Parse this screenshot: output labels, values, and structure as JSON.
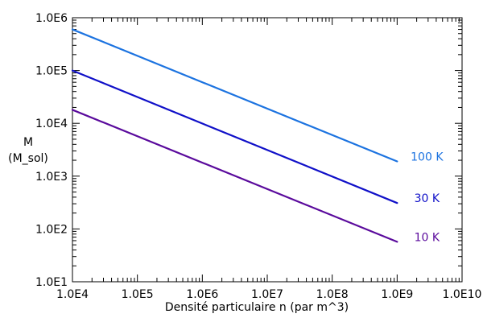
{
  "chart_data": {
    "type": "line",
    "xlabel": "Densité particulaire n (par m^3)",
    "ylabel_line1": "M",
    "ylabel_line2": "(M_sol)",
    "xscale": "log",
    "yscale": "log",
    "xlim": [
      10000,
      10000000000
    ],
    "ylim": [
      10,
      1000000
    ],
    "x_tick_values": [
      10000,
      100000,
      1000000,
      10000000,
      100000000,
      1000000000,
      10000000000
    ],
    "x_tick_labels": [
      "1.0E4",
      "1.0E5",
      "1.0E6",
      "1.0E7",
      "1.0E8",
      "1.0E9",
      "1.0E10"
    ],
    "y_tick_values": [
      10,
      100,
      1000,
      10000,
      100000,
      1000000
    ],
    "y_tick_labels": [
      "1.0E1",
      "1.0E2",
      "1.0E3",
      "1.0E4",
      "1.0E5",
      "1.0E6"
    ],
    "grid": false,
    "series": [
      {
        "name": "100 K",
        "color": "#1c73e0",
        "x": [
          10000,
          1000000000
        ],
        "y": [
          600000,
          1900
        ]
      },
      {
        "name": "30 K",
        "color": "#1010c8",
        "x": [
          10000,
          1000000000
        ],
        "y": [
          100000,
          310
        ]
      },
      {
        "name": "10 K",
        "color": "#5a0a9c",
        "x": [
          10000,
          1000000000
        ],
        "y": [
          18000,
          57
        ]
      }
    ]
  }
}
